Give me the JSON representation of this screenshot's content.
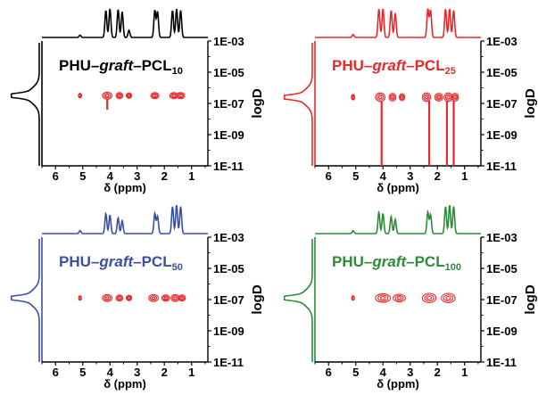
{
  "chart_data": [
    {
      "type": "scatter",
      "subtype": "2D DOSY NMR",
      "title_parts": {
        "pre": "PHU–",
        "italic": "graft",
        "mid": "–PCL",
        "sub": "10"
      },
      "color": "#000000",
      "contour_color": "#e8292c",
      "xlabel": "δ (ppm)",
      "ylabel": "logD",
      "x_ticks": [
        "6",
        "5",
        "4",
        "3",
        "2",
        "1"
      ],
      "y_ticks": [
        "1E-03",
        "1E-05",
        "1E-07",
        "1E-09",
        "1E-11"
      ],
      "xlim": [
        6.5,
        0.4
      ],
      "ylim_log": [
        -11,
        -3
      ],
      "f1_projection_peak_logD": -6.5,
      "peaks": [
        {
          "x": 5.1,
          "logD": -6.5,
          "w": 0.12,
          "h": 0.3
        },
        {
          "x": 4.1,
          "logD": -6.5,
          "w": 0.35,
          "h": 0.45
        },
        {
          "x": 3.65,
          "logD": -6.5,
          "w": 0.25,
          "h": 0.4
        },
        {
          "x": 3.3,
          "logD": -6.5,
          "w": 0.2,
          "h": 0.35
        },
        {
          "x": 2.35,
          "logD": -6.5,
          "w": 0.3,
          "h": 0.4
        },
        {
          "x": 1.65,
          "logD": -6.5,
          "w": 0.3,
          "h": 0.4
        },
        {
          "x": 1.4,
          "logD": -6.5,
          "w": 0.3,
          "h": 0.4
        }
      ],
      "streaks": [
        {
          "x": 4.1,
          "to_logD": -7.4
        }
      ],
      "x_trace_peaks": [
        {
          "x": 5.1,
          "h": 0.08
        },
        {
          "x": 4.15,
          "h": 0.95
        },
        {
          "x": 4.0,
          "h": 1.0
        },
        {
          "x": 3.7,
          "h": 0.98
        },
        {
          "x": 3.55,
          "h": 0.9
        },
        {
          "x": 3.3,
          "h": 0.25
        },
        {
          "x": 2.35,
          "h": 0.95
        },
        {
          "x": 2.25,
          "h": 0.9
        },
        {
          "x": 1.7,
          "h": 0.95
        },
        {
          "x": 1.55,
          "h": 1.0
        },
        {
          "x": 1.4,
          "h": 0.95
        }
      ]
    },
    {
      "type": "scatter",
      "subtype": "2D DOSY NMR",
      "title_parts": {
        "pre": "PHU–",
        "italic": "graft",
        "mid": "–PCL",
        "sub": "25"
      },
      "color": "#e8292c",
      "contour_color": "#e8292c",
      "xlabel": "δ (ppm)",
      "ylabel": "logD",
      "x_ticks": [
        "6",
        "5",
        "4",
        "3",
        "2",
        "1"
      ],
      "y_ticks": [
        "1E-03",
        "1E-05",
        "1E-07",
        "1E-09",
        "1E-11"
      ],
      "xlim": [
        6.5,
        0.4
      ],
      "ylim_log": [
        -11,
        -3
      ],
      "f1_projection_peak_logD": -6.6,
      "peaks": [
        {
          "x": 5.1,
          "logD": -6.6,
          "w": 0.12,
          "h": 0.35
        },
        {
          "x": 4.1,
          "logD": -6.6,
          "w": 0.35,
          "h": 0.55
        },
        {
          "x": 3.65,
          "logD": -6.6,
          "w": 0.25,
          "h": 0.5
        },
        {
          "x": 3.3,
          "logD": -6.6,
          "w": 0.2,
          "h": 0.45
        },
        {
          "x": 2.4,
          "logD": -6.6,
          "w": 0.3,
          "h": 0.55
        },
        {
          "x": 1.95,
          "logD": -6.6,
          "w": 0.3,
          "h": 0.5
        },
        {
          "x": 1.6,
          "logD": -6.6,
          "w": 0.3,
          "h": 0.55
        },
        {
          "x": 1.35,
          "logD": -6.6,
          "w": 0.25,
          "h": 0.5
        }
      ],
      "streaks": [
        {
          "x": 4.05,
          "to_logD": -11
        },
        {
          "x": 2.3,
          "to_logD": -11
        },
        {
          "x": 1.65,
          "to_logD": -11
        },
        {
          "x": 1.4,
          "to_logD": -11
        }
      ],
      "x_trace_peaks": [
        {
          "x": 5.1,
          "h": 0.1
        },
        {
          "x": 4.15,
          "h": 1.0
        },
        {
          "x": 4.0,
          "h": 1.0
        },
        {
          "x": 3.7,
          "h": 0.95
        },
        {
          "x": 3.55,
          "h": 0.85
        },
        {
          "x": 2.35,
          "h": 1.0
        },
        {
          "x": 2.25,
          "h": 0.95
        },
        {
          "x": 1.7,
          "h": 1.0
        },
        {
          "x": 1.55,
          "h": 1.0
        },
        {
          "x": 1.4,
          "h": 0.95
        }
      ]
    },
    {
      "type": "scatter",
      "subtype": "2D DOSY NMR",
      "title_parts": {
        "pre": "PHU–",
        "italic": "graft",
        "mid": "–PCL",
        "sub": "50"
      },
      "color": "#3a4fa6",
      "contour_color": "#e8292c",
      "xlabel": "δ (ppm)",
      "ylabel": "logD",
      "x_ticks": [
        "6",
        "5",
        "4",
        "3",
        "2",
        "1"
      ],
      "y_ticks": [
        "1E-03",
        "1E-05",
        "1E-07",
        "1E-09",
        "1E-11"
      ],
      "xlim": [
        6.5,
        0.4
      ],
      "ylim_log": [
        -11,
        -3
      ],
      "f1_projection_peak_logD": -6.9,
      "peaks": [
        {
          "x": 5.1,
          "logD": -6.9,
          "w": 0.1,
          "h": 0.3
        },
        {
          "x": 4.1,
          "logD": -6.9,
          "w": 0.35,
          "h": 0.45
        },
        {
          "x": 3.65,
          "logD": -6.9,
          "w": 0.25,
          "h": 0.4
        },
        {
          "x": 3.3,
          "logD": -6.9,
          "w": 0.2,
          "h": 0.35
        },
        {
          "x": 2.4,
          "logD": -6.9,
          "w": 0.35,
          "h": 0.45
        },
        {
          "x": 1.95,
          "logD": -6.9,
          "w": 0.3,
          "h": 0.4
        },
        {
          "x": 1.6,
          "logD": -6.9,
          "w": 0.3,
          "h": 0.45
        },
        {
          "x": 1.35,
          "logD": -6.9,
          "w": 0.25,
          "h": 0.4
        }
      ],
      "streaks": [],
      "x_trace_peaks": [
        {
          "x": 5.1,
          "h": 0.1
        },
        {
          "x": 4.15,
          "h": 0.7
        },
        {
          "x": 4.0,
          "h": 0.65
        },
        {
          "x": 3.7,
          "h": 0.55
        },
        {
          "x": 3.55,
          "h": 0.45
        },
        {
          "x": 2.35,
          "h": 0.7
        },
        {
          "x": 2.25,
          "h": 0.6
        },
        {
          "x": 1.7,
          "h": 0.95
        },
        {
          "x": 1.55,
          "h": 1.0
        },
        {
          "x": 1.4,
          "h": 0.95
        }
      ]
    },
    {
      "type": "scatter",
      "subtype": "2D DOSY NMR",
      "title_parts": {
        "pre": "PHU–",
        "italic": "graft",
        "mid": "–PCL",
        "sub": "100"
      },
      "color": "#2e8b3a",
      "contour_color": "#e8292c",
      "xlabel": "δ (ppm)",
      "ylabel": "logD",
      "x_ticks": [
        "6",
        "5",
        "4",
        "3",
        "2",
        "1"
      ],
      "y_ticks": [
        "1E-03",
        "1E-05",
        "1E-07",
        "1E-09",
        "1E-11"
      ],
      "xlim": [
        6.5,
        0.4
      ],
      "ylim_log": [
        -11,
        -3
      ],
      "f1_projection_peak_logD": -6.9,
      "peaks": [
        {
          "x": 5.1,
          "logD": -6.9,
          "w": 0.1,
          "h": 0.3
        },
        {
          "x": 4.0,
          "logD": -6.9,
          "w": 0.55,
          "h": 0.55
        },
        {
          "x": 3.4,
          "logD": -6.9,
          "w": 0.45,
          "h": 0.5
        },
        {
          "x": 2.3,
          "logD": -6.9,
          "w": 0.5,
          "h": 0.6
        },
        {
          "x": 1.6,
          "logD": -6.9,
          "w": 0.5,
          "h": 0.6
        }
      ],
      "streaks": [],
      "x_trace_peaks": [
        {
          "x": 5.1,
          "h": 0.1
        },
        {
          "x": 4.15,
          "h": 0.75
        },
        {
          "x": 4.0,
          "h": 0.7
        },
        {
          "x": 3.7,
          "h": 0.6
        },
        {
          "x": 3.55,
          "h": 0.5
        },
        {
          "x": 2.35,
          "h": 0.75
        },
        {
          "x": 2.25,
          "h": 0.65
        },
        {
          "x": 1.7,
          "h": 0.95
        },
        {
          "x": 1.55,
          "h": 1.0
        },
        {
          "x": 1.4,
          "h": 0.95
        }
      ]
    }
  ]
}
